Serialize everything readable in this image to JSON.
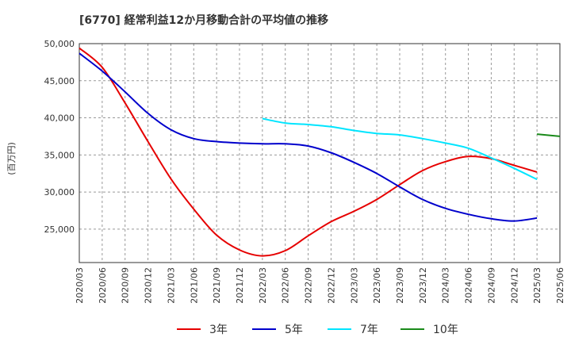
{
  "chart_data": {
    "type": "line",
    "title": "[6770]  経常利益12か月移動合計の平均値の推移",
    "ylabel": "(百万円)",
    "xlabel": "",
    "ylim": [
      20500,
      50000
    ],
    "yticks": [
      25000,
      30000,
      35000,
      40000,
      45000,
      50000
    ],
    "ytick_labels": [
      "25,000",
      "30,000",
      "35,000",
      "40,000",
      "45,000",
      "50,000"
    ],
    "categories": [
      "2020/03",
      "2020/06",
      "2020/09",
      "2020/12",
      "2021/03",
      "2021/06",
      "2021/09",
      "2021/12",
      "2022/03",
      "2022/06",
      "2022/09",
      "2022/12",
      "2023/03",
      "2023/06",
      "2023/09",
      "2023/12",
      "2024/03",
      "2024/06",
      "2024/09",
      "2024/12",
      "2025/03",
      "2025/06"
    ],
    "grid": true,
    "legend_position": "bottom",
    "series": [
      {
        "name": "3年",
        "color": "#e60000",
        "values": [
          49400,
          46800,
          42000,
          36800,
          31800,
          27700,
          24200,
          22200,
          21400,
          22100,
          24100,
          26000,
          27400,
          29000,
          31000,
          32900,
          34100,
          34800,
          34500,
          33600,
          32700,
          null
        ]
      },
      {
        "name": "5年",
        "color": "#0000cc",
        "values": [
          48700,
          46300,
          43500,
          40600,
          38400,
          37200,
          36800,
          36600,
          36500,
          36500,
          36200,
          35300,
          34000,
          32500,
          30700,
          29000,
          27800,
          27000,
          26400,
          26100,
          26500,
          null
        ]
      },
      {
        "name": "7年",
        "color": "#00e5ff",
        "values": [
          null,
          null,
          null,
          null,
          null,
          null,
          null,
          null,
          39900,
          39300,
          39100,
          38800,
          38300,
          37900,
          37700,
          37200,
          36600,
          35900,
          34600,
          33200,
          31700,
          null
        ]
      },
      {
        "name": "10年",
        "color": "#1a8a1a",
        "values": [
          null,
          null,
          null,
          null,
          null,
          null,
          null,
          null,
          null,
          null,
          null,
          null,
          null,
          null,
          null,
          null,
          null,
          null,
          null,
          null,
          37800,
          37500
        ]
      }
    ]
  }
}
